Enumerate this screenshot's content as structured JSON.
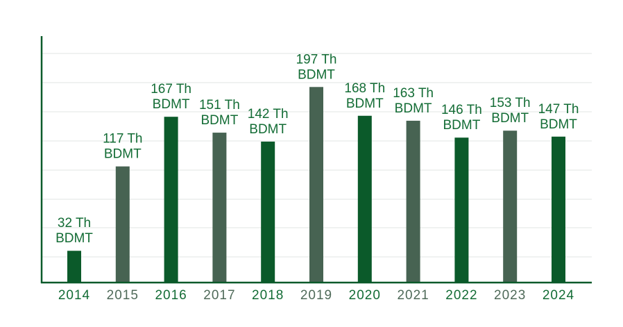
{
  "colors": {
    "dark_green": "#0b5a2a",
    "slate_green": "#476352",
    "axis": "#0b5a2a",
    "grid": "#e2e6e3",
    "label_dark": "#136c35",
    "label_muted": "#4f6a59"
  },
  "chart_data": {
    "type": "bar",
    "categories": [
      "2014",
      "2015",
      "2016",
      "2017",
      "2018",
      "2019",
      "2020",
      "2021",
      "2022",
      "2023",
      "2024"
    ],
    "values": [
      32,
      117,
      167,
      151,
      142,
      197,
      168,
      163,
      146,
      153,
      147
    ],
    "data_labels": [
      [
        "32 Th",
        "BDMT"
      ],
      [
        "117 Th",
        "BDMT"
      ],
      [
        "167 Th",
        "BDMT"
      ],
      [
        "151 Th",
        "BDMT"
      ],
      [
        "142 Th",
        "BDMT"
      ],
      [
        "197 Th",
        "BDMT"
      ],
      [
        "168 Th",
        "BDMT"
      ],
      [
        "163 Th",
        "BDMT"
      ],
      [
        "146 Th",
        "BDMT"
      ],
      [
        "153 Th",
        "BDMT"
      ],
      [
        "147 Th",
        "BDMT"
      ]
    ],
    "bar_colors": [
      "dark_green",
      "slate_green",
      "dark_green",
      "slate_green",
      "dark_green",
      "slate_green",
      "dark_green",
      "slate_green",
      "dark_green",
      "slate_green",
      "dark_green"
    ],
    "tick_label_colors": [
      "label_dark",
      "label_muted",
      "label_dark",
      "label_muted",
      "label_dark",
      "label_muted",
      "label_dark",
      "label_muted",
      "label_dark",
      "label_muted",
      "label_dark"
    ],
    "title": "",
    "xlabel": "",
    "ylabel": "",
    "grid": true,
    "legend": "none"
  }
}
